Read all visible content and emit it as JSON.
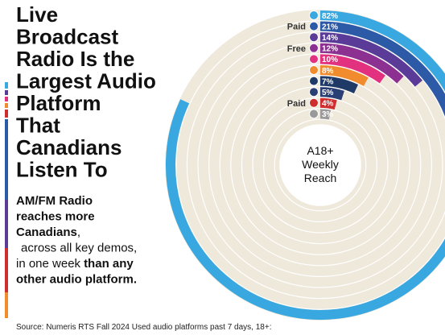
{
  "headline": [
    "Live",
    "Broadcast",
    "Radio Is the",
    "Largest Audio",
    "Platform",
    "That",
    "Canadians",
    "Listen To"
  ],
  "body": [
    "AM/FM Radio",
    "reaches more",
    "Canadians",
    ",",
    "across all key demos,",
    "in one week",
    "than any",
    "other audio platform."
  ],
  "source": "Source: Numeris RTS Fall 2024 Used audio platforms past 7 days, 18+:",
  "chart_data": {
    "type": "radial-bar",
    "values": [
      82,
      21,
      14,
      12,
      10,
      8,
      7,
      5,
      4,
      3
    ],
    "value_labels": [
      "82%",
      "21%",
      "14%",
      "12%",
      "10%",
      "8%",
      "7%",
      "5%",
      "4%",
      "3%"
    ],
    "colors": [
      "#3aa8e0",
      "#2d5aa6",
      "#5a3c98",
      "#8c3192",
      "#e2327f",
      "#f08c2e",
      "#1f3a66",
      "#2a3f74",
      "#cf2e2e",
      "#9a9a9a"
    ],
    "center_label": [
      "A18+",
      "Weekly",
      "Reach"
    ],
    "annotations": [
      "Paid",
      "Free",
      "Paid"
    ]
  }
}
